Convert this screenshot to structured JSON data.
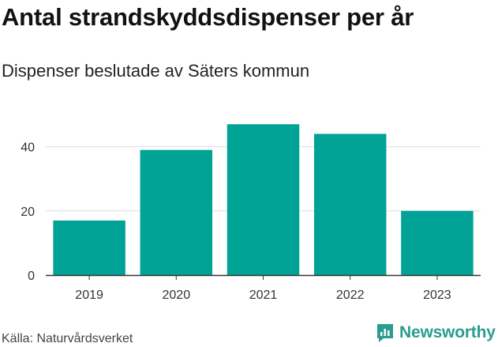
{
  "title": "Antal strandskyddsdispenser per år",
  "subtitle": "Dispenser beslutade av Säters kommun",
  "source": "Källa: Naturvårdsverket",
  "brand": "Newsworthy",
  "colors": {
    "bar": "#00a396",
    "grid": "#dddddd",
    "axis": "#333333",
    "brand": "#2a9d8f"
  },
  "chart_data": {
    "type": "bar",
    "categories": [
      "2019",
      "2020",
      "2021",
      "2022",
      "2023"
    ],
    "values": [
      17,
      39,
      47,
      44,
      20
    ],
    "title": "Antal strandskyddsdispenser per år",
    "subtitle": "Dispenser beslutade av Säters kommun",
    "xlabel": "",
    "ylabel": "",
    "ylim": [
      0,
      50
    ],
    "yticks": [
      0,
      20,
      40
    ],
    "grid": true,
    "legend": "none"
  }
}
